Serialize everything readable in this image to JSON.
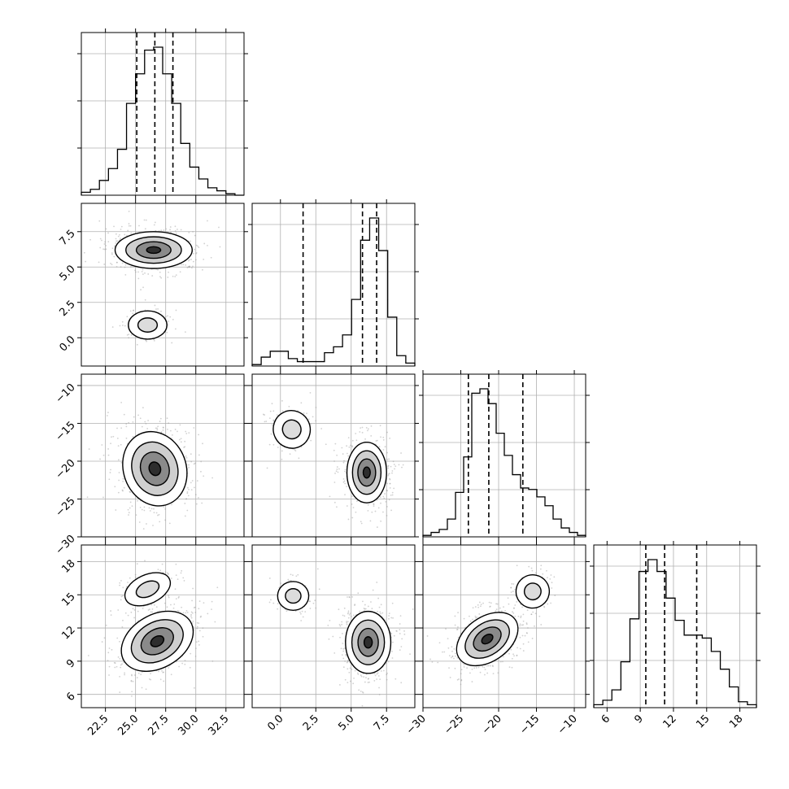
{
  "chart_data": {
    "type": "corner",
    "n_params": 4,
    "axis_ranges": [
      [
        20.5,
        34.0
      ],
      [
        -2.0,
        9.5
      ],
      [
        -30.0,
        -8.5
      ],
      [
        4.8,
        19.5
      ]
    ],
    "ticks": [
      [
        22.5,
        25.0,
        27.5,
        30.0,
        32.5
      ],
      [
        0.0,
        2.5,
        5.0,
        7.5
      ],
      [
        -30,
        -25,
        -20,
        -15,
        -10
      ],
      [
        6,
        9,
        12,
        15,
        18
      ]
    ],
    "tick_labels": [
      [
        "22.5",
        "25.0",
        "27.5",
        "30.0",
        "32.5"
      ],
      [
        "0.0",
        "2.5",
        "5.0",
        "7.5"
      ],
      [
        "−30",
        "−25",
        "−20",
        "−15",
        "−10"
      ],
      [
        "6",
        "9",
        "12",
        "15",
        "18"
      ]
    ],
    "quantiles": [
      [
        25.1,
        26.6,
        28.1
      ],
      [
        1.6,
        5.8,
        6.8
      ],
      [
        -24.0,
        -21.3,
        -16.8
      ],
      [
        9.5,
        11.2,
        14.1
      ]
    ],
    "histograms": [
      [
        0.02,
        0.04,
        0.1,
        0.18,
        0.31,
        0.62,
        0.82,
        0.98,
        1.0,
        0.82,
        0.62,
        0.35,
        0.19,
        0.11,
        0.05,
        0.03,
        0.01,
        0.0
      ],
      [
        0.01,
        0.06,
        0.1,
        0.1,
        0.05,
        0.03,
        0.03,
        0.03,
        0.09,
        0.13,
        0.21,
        0.45,
        0.85,
        1.0,
        0.78,
        0.33,
        0.07,
        0.02
      ],
      [
        0.01,
        0.03,
        0.05,
        0.12,
        0.3,
        0.54,
        0.97,
        1.0,
        0.9,
        0.7,
        0.55,
        0.42,
        0.33,
        0.32,
        0.27,
        0.21,
        0.12,
        0.06,
        0.03,
        0.01
      ],
      [
        0.02,
        0.05,
        0.12,
        0.31,
        0.6,
        0.92,
        1.0,
        0.92,
        0.74,
        0.59,
        0.49,
        0.49,
        0.47,
        0.38,
        0.26,
        0.14,
        0.04,
        0.02
      ]
    ],
    "modes": [
      {
        "cx": 26.6,
        "cy_by_param": {
          "p1": 6.0,
          "p2": -21.3,
          "p3": 10.8
        }
      },
      {
        "cx": 25.8,
        "cy_by_param": {
          "p1": 0.9,
          "p2": -15.8,
          "p3": 15.3
        }
      }
    ],
    "pairs": [
      {
        "row": 1,
        "col": 0,
        "blobs": [
          {
            "cx": 26.5,
            "cy": 6.2,
            "rx": 3.2,
            "ry": 1.3,
            "rot": 0,
            "level": 3
          },
          {
            "cx": 26.0,
            "cy": 0.9,
            "rx": 1.6,
            "ry": 1.0,
            "rot": 0,
            "level": 1
          }
        ]
      },
      {
        "row": 2,
        "col": 0,
        "blobs": [
          {
            "cx": 26.6,
            "cy": -21.0,
            "rx": 2.6,
            "ry": 5.0,
            "rot": -20,
            "level": 3
          }
        ]
      },
      {
        "row": 2,
        "col": 1,
        "blobs": [
          {
            "cx": 6.1,
            "cy": -21.5,
            "rx": 1.4,
            "ry": 4.0,
            "rot": 0,
            "level": 3
          },
          {
            "cx": 0.8,
            "cy": -15.8,
            "rx": 1.3,
            "ry": 2.5,
            "rot": -25,
            "level": 1
          }
        ]
      },
      {
        "row": 3,
        "col": 0,
        "blobs": [
          {
            "cx": 26.8,
            "cy": 10.8,
            "rx": 3.2,
            "ry": 2.4,
            "rot": -30,
            "level": 3
          },
          {
            "cx": 26.0,
            "cy": 15.5,
            "rx": 2.0,
            "ry": 1.3,
            "rot": -25,
            "level": 1
          }
        ]
      },
      {
        "row": 3,
        "col": 1,
        "blobs": [
          {
            "cx": 6.2,
            "cy": 10.7,
            "rx": 1.6,
            "ry": 2.8,
            "rot": 0,
            "level": 3
          },
          {
            "cx": 0.9,
            "cy": 14.9,
            "rx": 1.1,
            "ry": 1.3,
            "rot": 0,
            "level": 1
          }
        ]
      },
      {
        "row": 3,
        "col": 2,
        "blobs": [
          {
            "cx": -21.5,
            "cy": 11.0,
            "rx": 4.5,
            "ry": 2.0,
            "rot": -35,
            "level": 3
          },
          {
            "cx": -15.5,
            "cy": 15.3,
            "rx": 2.2,
            "ry": 1.5,
            "rot": -35,
            "level": 1
          }
        ]
      }
    ],
    "grid": true,
    "title": "",
    "xlabel": "",
    "ylabel": ""
  }
}
